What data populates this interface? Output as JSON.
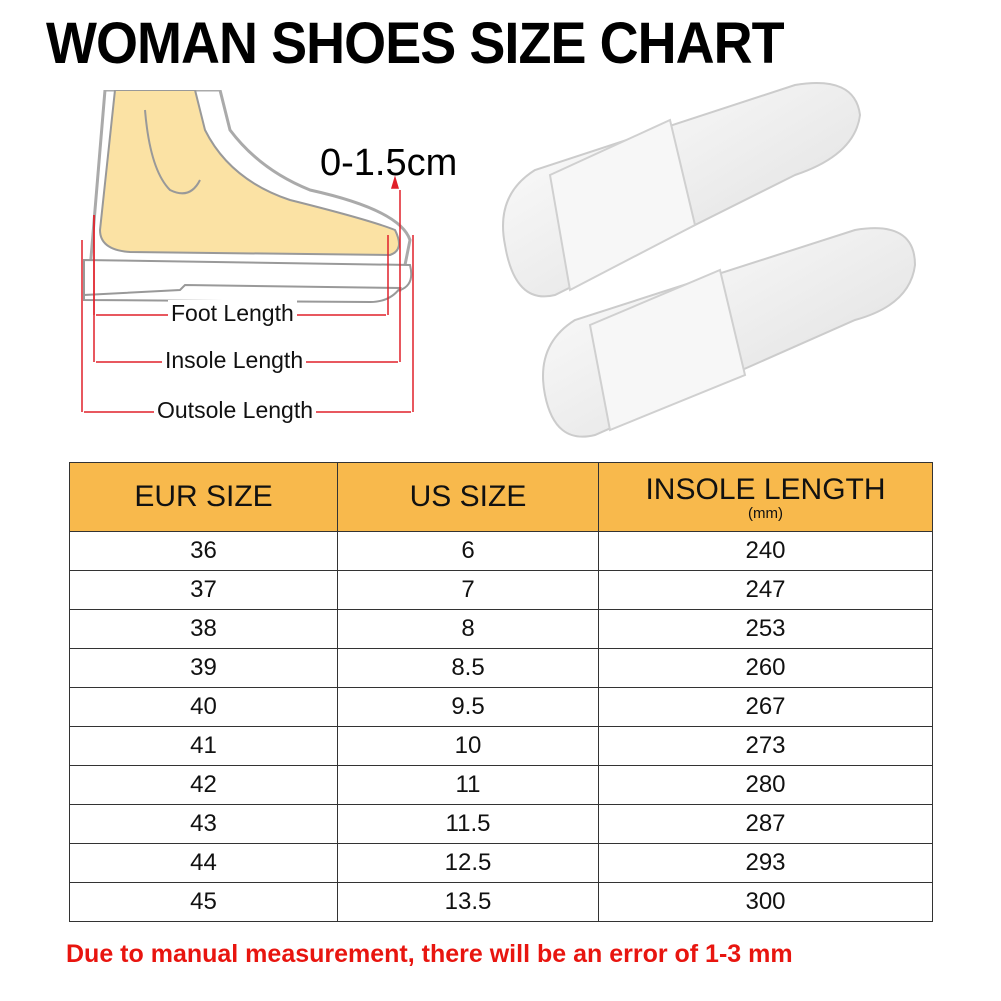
{
  "title": "WOMAN SHOES SIZE CHART",
  "diagram": {
    "gap_label": "0-1.5cm",
    "foot_length": "Foot Length",
    "insole_length": "Insole Length",
    "outsole_length": "Outsole Length",
    "arrow_color": "#e0202a",
    "foot_color": "#fbe2a4"
  },
  "table": {
    "header_color": "#f8b94c",
    "headers": [
      "EUR SIZE",
      "US SIZE",
      "INSOLE  LENGTH"
    ],
    "header_unit": "(mm)",
    "rows": [
      [
        "36",
        "6",
        "240"
      ],
      [
        "37",
        "7",
        "247"
      ],
      [
        "38",
        "8",
        "253"
      ],
      [
        "39",
        "8.5",
        "260"
      ],
      [
        "40",
        "9.5",
        "267"
      ],
      [
        "41",
        "10",
        "273"
      ],
      [
        "42",
        "11",
        "280"
      ],
      [
        "43",
        "11.5",
        "287"
      ],
      [
        "44",
        "12.5",
        "293"
      ],
      [
        "45",
        "13.5",
        "300"
      ]
    ]
  },
  "note": "Due to manual measurement, there will be an error of 1-3  mm"
}
